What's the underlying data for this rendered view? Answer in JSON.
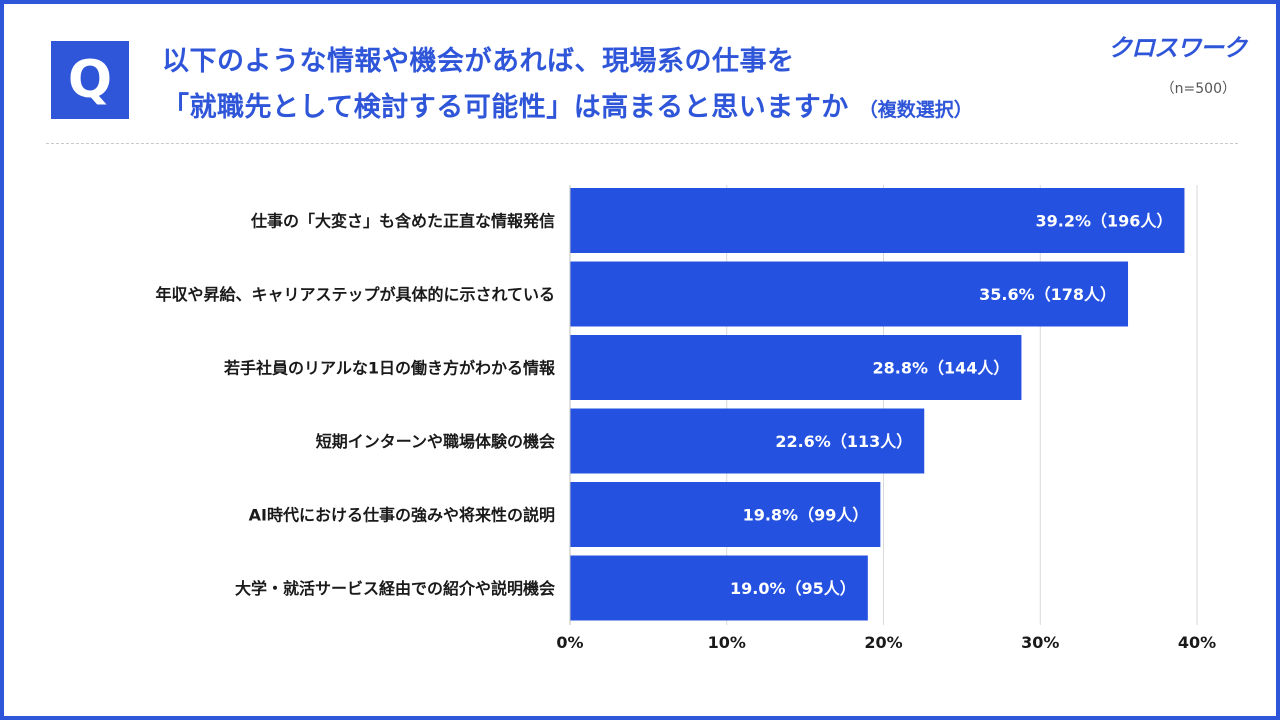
{
  "header": {
    "badge": "Q",
    "title_line1": "以下のような情報や機会があれば、現場系の仕事を",
    "title_line2": "「就職先として検討する可能性」は高まると思いますか",
    "multi_select_note": "（複数選択）",
    "logo": "クロスワーク",
    "sample_note": "（n=500）"
  },
  "colors": {
    "accent": "#2f56d9",
    "bar": "#2451e0",
    "grid": "#d9d9d9"
  },
  "chart_data": {
    "type": "bar",
    "orientation": "horizontal",
    "title": "",
    "xlabel": "",
    "ylabel": "",
    "categories": [
      "仕事の「大変さ」も含めた正直な情報発信",
      "年収や昇給、キャリアステップが具体的に示されている",
      "若手社員のリアルな1日の働き方がわかる情報",
      "短期インターンや職場体験の機会",
      "AI時代における仕事の強みや将来性の説明",
      "大学・就活サービス経由での紹介や説明機会"
    ],
    "values": [
      39.2,
      35.6,
      28.8,
      22.6,
      19.8,
      19.0
    ],
    "data_labels": [
      "39.2%（196人）",
      "35.6%（178人）",
      "28.8%（144人）",
      "22.6%（113人）",
      "19.8%（99人）",
      "19.0%（95人）"
    ],
    "xlim": [
      0,
      40
    ],
    "ticks": [
      0,
      10,
      20,
      30,
      40
    ],
    "tick_labels": [
      "0%",
      "10%",
      "20%",
      "30%",
      "40%"
    ],
    "grid": true
  }
}
